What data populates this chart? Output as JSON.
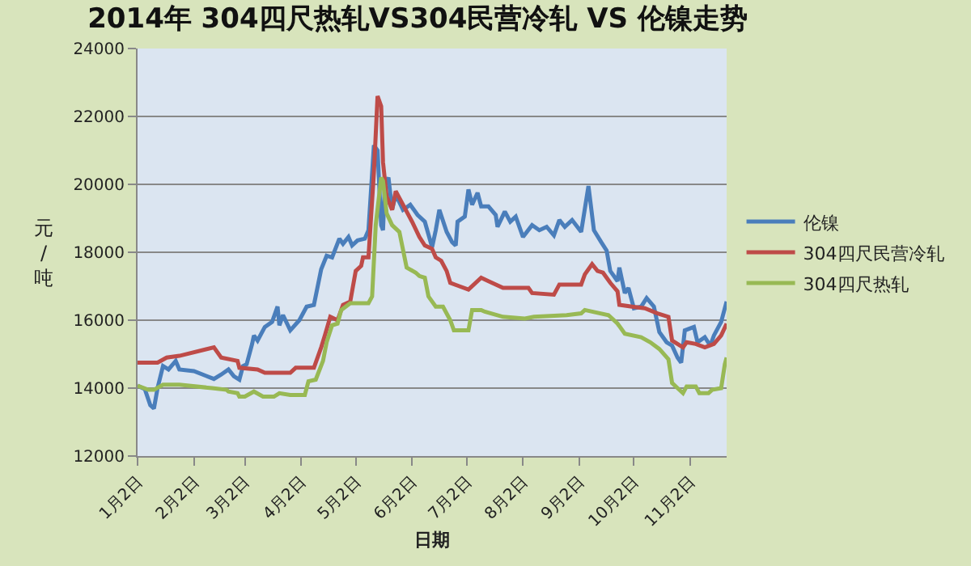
{
  "chart_data": {
    "type": "line",
    "title": "2014年 304四尺热轧VS304民营冷轧 VS 伦镍走势",
    "xlabel": "日期",
    "ylabel": "元/吨",
    "ylim": [
      12000,
      24000
    ],
    "yticks": [
      12000,
      14000,
      16000,
      18000,
      20000,
      22000,
      24000
    ],
    "xlim": [
      "2014-01-02",
      "2014-11-22"
    ],
    "xticks": [
      {
        "value": "2014-01-02",
        "label": "1月2日"
      },
      {
        "value": "2014-02-02",
        "label": "2月2日"
      },
      {
        "value": "2014-03-02",
        "label": "3月2日"
      },
      {
        "value": "2014-04-02",
        "label": "4月2日"
      },
      {
        "value": "2014-05-02",
        "label": "5月2日"
      },
      {
        "value": "2014-06-02",
        "label": "6月2日"
      },
      {
        "value": "2014-07-02",
        "label": "7月2日"
      },
      {
        "value": "2014-08-02",
        "label": "8月2日"
      },
      {
        "value": "2014-09-02",
        "label": "9月2日"
      },
      {
        "value": "2014-10-02",
        "label": "10月2日"
      },
      {
        "value": "2014-11-02",
        "label": "11月2日"
      }
    ],
    "grid": "y",
    "legend": "right",
    "marker": "none",
    "line_style": "solid",
    "series": [
      {
        "name": "伦镍",
        "color": "#4a7ebb",
        "x": [
          "2014-01-02",
          "2014-01-06",
          "2014-01-09",
          "2014-01-11",
          "2014-01-13",
          "2014-01-16",
          "2014-01-19",
          "2014-01-23",
          "2014-01-25",
          "2014-02-02",
          "2014-02-13",
          "2014-02-17",
          "2014-02-21",
          "2014-02-24",
          "2014-02-27",
          "2014-03-01",
          "2014-03-03",
          "2014-03-06",
          "2014-03-07",
          "2014-03-09",
          "2014-03-13",
          "2014-03-17",
          "2014-03-20",
          "2014-03-21",
          "2014-03-23",
          "2014-03-27",
          "2014-04-01",
          "2014-04-05",
          "2014-04-09",
          "2014-04-13",
          "2014-04-16",
          "2014-04-19",
          "2014-04-23",
          "2014-04-25",
          "2014-04-28",
          "2014-04-30",
          "2014-05-03",
          "2014-05-07",
          "2014-05-09",
          "2014-05-12",
          "2014-05-14",
          "2014-05-16",
          "2014-05-17",
          "2014-05-18",
          "2014-05-20",
          "2014-05-22",
          "2014-05-24",
          "2014-05-28",
          "2014-06-01",
          "2014-06-05",
          "2014-06-09",
          "2014-06-13",
          "2014-06-15",
          "2014-06-17",
          "2014-06-21",
          "2014-06-24",
          "2014-06-26",
          "2014-06-27",
          "2014-07-01",
          "2014-07-03",
          "2014-07-05",
          "2014-07-08",
          "2014-07-10",
          "2014-07-14",
          "2014-07-18",
          "2014-07-19",
          "2014-07-23",
          "2014-07-26",
          "2014-07-29",
          "2014-08-02",
          "2014-08-07",
          "2014-08-11",
          "2014-08-15",
          "2014-08-19",
          "2014-08-22",
          "2014-08-25",
          "2014-08-29",
          "2014-09-03",
          "2014-09-07",
          "2014-09-10",
          "2014-09-14",
          "2014-09-17",
          "2014-09-19",
          "2014-09-23",
          "2014-09-24",
          "2014-09-27",
          "2014-09-29",
          "2014-10-02",
          "2014-10-06",
          "2014-10-09",
          "2014-10-13",
          "2014-10-16",
          "2014-10-20",
          "2014-10-23",
          "2014-10-26",
          "2014-10-28",
          "2014-10-30",
          "2014-11-04",
          "2014-11-06",
          "2014-11-10",
          "2014-11-13",
          "2014-11-15",
          "2014-11-19",
          "2014-11-22"
        ],
        "values": [
          14070,
          13970,
          13500,
          13400,
          14000,
          14650,
          14550,
          14800,
          14550,
          14500,
          14270,
          14400,
          14550,
          14350,
          14250,
          14650,
          14700,
          15300,
          15550,
          15400,
          15800,
          15950,
          16400,
          15850,
          16150,
          15700,
          16000,
          16400,
          16450,
          17500,
          17900,
          17850,
          18400,
          18250,
          18450,
          18200,
          18350,
          18400,
          18650,
          21150,
          21000,
          18800,
          18650,
          20000,
          20200,
          19250,
          19700,
          19250,
          19400,
          19100,
          18900,
          18150,
          18650,
          19250,
          18600,
          18300,
          18200,
          18900,
          19050,
          19850,
          19400,
          19750,
          19350,
          19350,
          19100,
          18750,
          19200,
          18900,
          19050,
          18450,
          18800,
          18650,
          18750,
          18500,
          18950,
          18750,
          18950,
          18600,
          19950,
          18650,
          18300,
          18050,
          17450,
          17150,
          17550,
          16800,
          16950,
          16350,
          16400,
          16650,
          16400,
          15650,
          15350,
          15250,
          14900,
          14750,
          15700,
          15800,
          15350,
          15500,
          15250,
          15550,
          15950,
          16550
        ]
      },
      {
        "name": "304四尺民营冷轧",
        "color": "#be4b48",
        "x": [
          "2014-01-02",
          "2014-01-13",
          "2014-01-18",
          "2014-01-25",
          "2014-02-13",
          "2014-02-17",
          "2014-02-26",
          "2014-02-27",
          "2014-03-09",
          "2014-03-13",
          "2014-03-27",
          "2014-03-30",
          "2014-04-09",
          "2014-04-13",
          "2014-04-15",
          "2014-04-18",
          "2014-04-22",
          "2014-04-25",
          "2014-04-29",
          "2014-05-02",
          "2014-05-05",
          "2014-05-06",
          "2014-05-09",
          "2014-05-12",
          "2014-05-14",
          "2014-05-16",
          "2014-05-17",
          "2014-05-19",
          "2014-05-22",
          "2014-05-24",
          "2014-05-30",
          "2014-06-02",
          "2014-06-06",
          "2014-06-09",
          "2014-06-13",
          "2014-06-15",
          "2014-06-18",
          "2014-06-21",
          "2014-06-23",
          "2014-06-28",
          "2014-07-03",
          "2014-07-10",
          "2014-07-14",
          "2014-07-22",
          "2014-08-05",
          "2014-08-07",
          "2014-08-19",
          "2014-08-22",
          "2014-09-03",
          "2014-09-05",
          "2014-09-09",
          "2014-09-12",
          "2014-09-15",
          "2014-09-19",
          "2014-09-23",
          "2014-09-24",
          "2014-10-01",
          "2014-10-08",
          "2014-10-15",
          "2014-10-21",
          "2014-10-23",
          "2014-10-29",
          "2014-10-31",
          "2014-11-05",
          "2014-11-10",
          "2014-11-15",
          "2014-11-19",
          "2014-11-22"
        ],
        "values": [
          14750,
          14750,
          14900,
          14950,
          15200,
          14900,
          14800,
          14600,
          14550,
          14450,
          14450,
          14600,
          14600,
          15200,
          15550,
          16100,
          16000,
          16450,
          16550,
          17450,
          17600,
          17850,
          17850,
          20350,
          22600,
          22300,
          20650,
          19650,
          19250,
          19800,
          19200,
          18900,
          18450,
          18200,
          18100,
          17850,
          17750,
          17450,
          17100,
          17000,
          16900,
          17250,
          17150,
          16950,
          16950,
          16800,
          16750,
          17050,
          17050,
          17350,
          17650,
          17450,
          17400,
          17100,
          16850,
          16450,
          16400,
          16350,
          16200,
          16100,
          15400,
          15200,
          15350,
          15300,
          15200,
          15300,
          15550,
          15900
        ]
      },
      {
        "name": "304四尺热轧",
        "color": "#98b954",
        "x": [
          "2014-01-02",
          "2014-01-08",
          "2014-01-11",
          "2014-01-16",
          "2014-01-25",
          "2014-02-12",
          "2014-02-20",
          "2014-02-21",
          "2014-02-26",
          "2014-02-27",
          "2014-03-02",
          "2014-03-07",
          "2014-03-12",
          "2014-03-18",
          "2014-03-21",
          "2014-03-27",
          "2014-04-04",
          "2014-04-06",
          "2014-04-10",
          "2014-04-14",
          "2014-04-16",
          "2014-04-19",
          "2014-04-22",
          "2014-04-24",
          "2014-04-29",
          "2014-05-09",
          "2014-05-11",
          "2014-05-13",
          "2014-05-16",
          "2014-05-17",
          "2014-05-19",
          "2014-05-22",
          "2014-05-26",
          "2014-05-30",
          "2014-06-04",
          "2014-06-06",
          "2014-06-09",
          "2014-06-11",
          "2014-06-15",
          "2014-06-19",
          "2014-06-23",
          "2014-06-25",
          "2014-07-03",
          "2014-07-05",
          "2014-07-10",
          "2014-07-12",
          "2014-07-22",
          "2014-08-03",
          "2014-08-08",
          "2014-08-26",
          "2014-09-03",
          "2014-09-05",
          "2014-09-18",
          "2014-09-23",
          "2014-09-27",
          "2014-10-06",
          "2014-10-11",
          "2014-10-16",
          "2014-10-21",
          "2014-10-23",
          "2014-10-26",
          "2014-10-29",
          "2014-10-31",
          "2014-11-05",
          "2014-11-07",
          "2014-11-12",
          "2014-11-14",
          "2014-11-19",
          "2014-11-21",
          "2014-11-22"
        ],
        "values": [
          14070,
          13950,
          13950,
          14100,
          14100,
          14000,
          13950,
          13900,
          13850,
          13750,
          13750,
          13900,
          13750,
          13750,
          13850,
          13800,
          13800,
          14200,
          14250,
          14800,
          15350,
          15850,
          15900,
          16300,
          16500,
          16500,
          16700,
          18800,
          20200,
          20100,
          19150,
          18800,
          18600,
          17550,
          17400,
          17300,
          17250,
          16700,
          16400,
          16400,
          16000,
          15700,
          15700,
          16300,
          16300,
          16250,
          16100,
          16050,
          16100,
          16150,
          16200,
          16300,
          16150,
          15900,
          15600,
          15500,
          15350,
          15150,
          14850,
          14150,
          14000,
          13850,
          14050,
          14050,
          13850,
          13850,
          13950,
          14000,
          14700,
          14900
        ]
      }
    ]
  }
}
